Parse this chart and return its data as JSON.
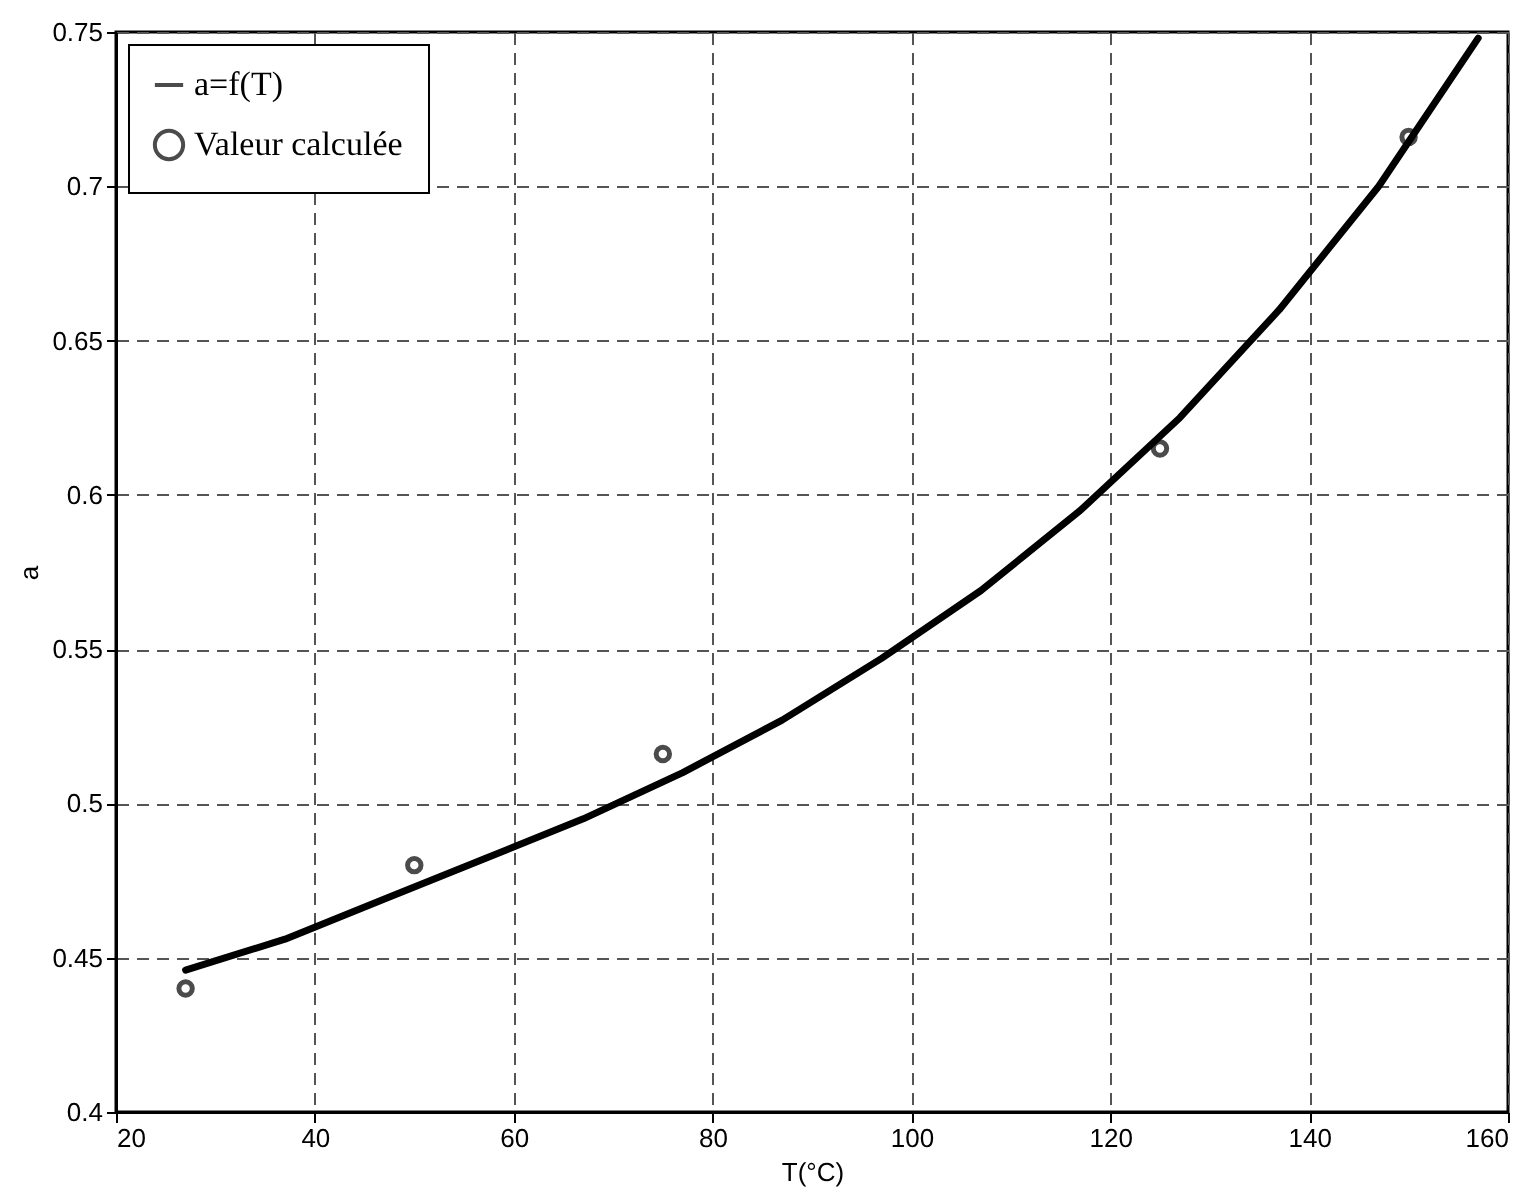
{
  "chart_data": {
    "type": "line",
    "xlabel": "T(°C)",
    "ylabel": "a",
    "xlim": [
      20,
      160
    ],
    "xticks": [
      20,
      40,
      60,
      80,
      100,
      120,
      140,
      160
    ],
    "ylim": [
      0.4,
      0.75
    ],
    "yticks": [
      0.4,
      0.45,
      0.5,
      0.55,
      0.6,
      0.65,
      0.7,
      0.75
    ],
    "grid": true,
    "legend": "top left",
    "series": [
      {
        "name": "a=f(T)",
        "type": "line",
        "color": "#000000",
        "marker": "none",
        "line_style": "solid",
        "x": [
          27,
          37,
          47,
          57,
          67,
          77,
          87,
          97,
          107,
          117,
          127,
          137,
          147,
          157
        ],
        "values": [
          0.446,
          0.456,
          0.469,
          0.482,
          0.495,
          0.51,
          0.527,
          0.547,
          0.569,
          0.595,
          0.625,
          0.66,
          0.7,
          0.748
        ]
      },
      {
        "name": "Valeur calculée",
        "type": "scatter",
        "color": "#000000",
        "marker": "circle",
        "x": [
          27,
          50,
          75,
          125,
          150
        ],
        "values": [
          0.44,
          0.48,
          0.516,
          0.615,
          0.716
        ]
      }
    ]
  }
}
